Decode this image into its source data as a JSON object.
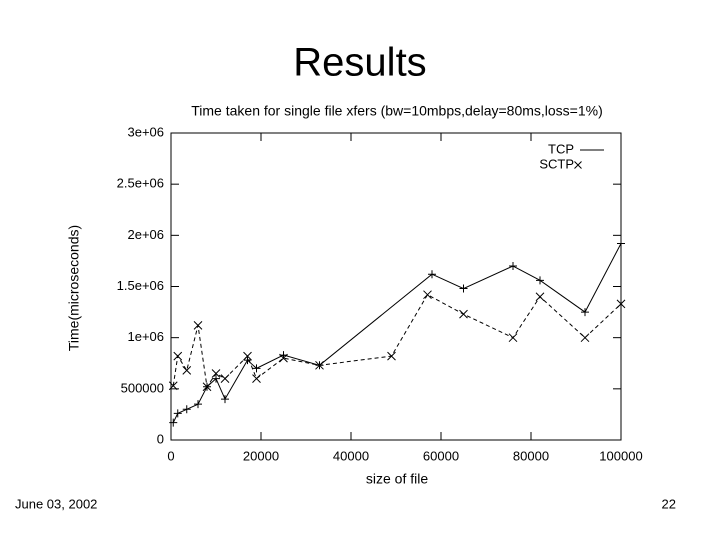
{
  "title": "Results",
  "footer_date": "June 03, 2002",
  "page_number": "22",
  "chart_data": {
    "type": "line",
    "title": "Time taken for single file xfers (bw=10mbps,delay=80ms,loss=1%)",
    "xlabel": "size of file",
    "ylabel": "Time(microseconds)",
    "xlim": [
      0,
      100000
    ],
    "xticks": [
      0,
      20000,
      40000,
      60000,
      80000,
      100000
    ],
    "ylim": [
      0,
      3000000
    ],
    "yticks": [
      0,
      500000,
      {
        "value": 1000000,
        "label": "1e+06"
      },
      {
        "value": 1500000,
        "label": "1.5e+06"
      },
      {
        "value": 2000000,
        "label": "2e+06"
      },
      {
        "value": 2500000,
        "label": "2.5e+06"
      },
      {
        "value": 3000000,
        "label": "3e+06"
      }
    ],
    "legend": "upper right",
    "series": [
      {
        "name": "TCP",
        "color": "#000000",
        "line_style": "solid",
        "marker": "+",
        "x": [
          500,
          1500,
          3500,
          6000,
          8000,
          10000,
          12000,
          17000,
          19000,
          25000,
          33000,
          58000,
          65000,
          76000,
          82000,
          92000,
          100000
        ],
        "values": [
          170000,
          260000,
          300000,
          350000,
          520000,
          600000,
          400000,
          780000,
          700000,
          830000,
          730000,
          1620000,
          1480000,
          1700000,
          1560000,
          1250000,
          1920000
        ]
      },
      {
        "name": "SCTP",
        "color": "#000000",
        "line_style": "dashed",
        "marker": "x",
        "x": [
          500,
          1500,
          3500,
          6000,
          8000,
          10000,
          12000,
          17000,
          19000,
          25000,
          33000,
          49000,
          57000,
          65000,
          76000,
          82000,
          92000,
          100000
        ],
        "values": [
          530000,
          820000,
          680000,
          1120000,
          520000,
          650000,
          600000,
          820000,
          600000,
          800000,
          730000,
          820000,
          1420000,
          1230000,
          1000000,
          1400000,
          1000000,
          1330000
        ]
      }
    ]
  }
}
